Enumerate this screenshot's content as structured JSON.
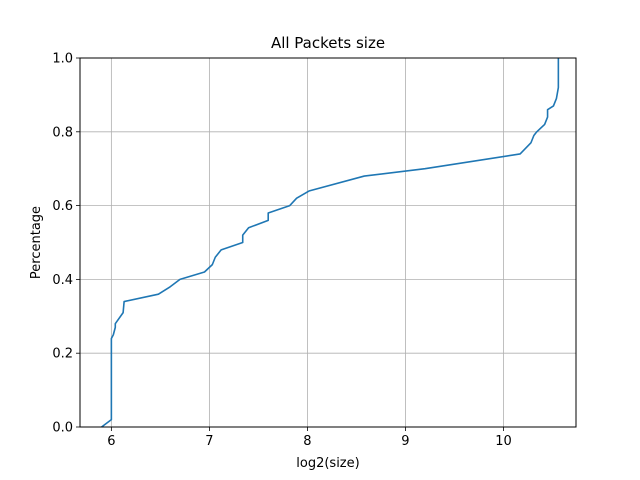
{
  "chart_data": {
    "type": "line",
    "title": "All Packets size",
    "xlabel": "log2(size)",
    "ylabel": "Percentage",
    "xlim": [
      5.68,
      10.74
    ],
    "ylim": [
      0.0,
      1.0
    ],
    "grid": true,
    "xticks": [
      6,
      7,
      8,
      9,
      10
    ],
    "xtick_labels": [
      "6",
      "7",
      "8",
      "9",
      "10"
    ],
    "yticks": [
      0.0,
      0.2,
      0.4,
      0.6,
      0.8,
      1.0
    ],
    "ytick_labels": [
      "0.0",
      "0.2",
      "0.4",
      "0.6",
      "0.8",
      "1.0"
    ],
    "series": [
      {
        "color": "#1f77b4",
        "x": [
          5.9,
          6.0,
          6.0,
          6.0,
          6.02,
          6.04,
          6.04,
          6.12,
          6.13,
          6.48,
          6.6,
          6.7,
          6.95,
          7.03,
          7.06,
          7.12,
          7.34,
          7.34,
          7.4,
          7.6,
          7.6,
          7.82,
          7.89,
          8.02,
          8.58,
          9.2,
          10.17,
          10.28,
          10.31,
          10.34,
          10.42,
          10.45,
          10.45,
          10.51,
          10.54,
          10.56,
          10.56
        ],
        "y": [
          0.0,
          0.02,
          0.08,
          0.24,
          0.25,
          0.27,
          0.28,
          0.31,
          0.34,
          0.36,
          0.38,
          0.4,
          0.42,
          0.44,
          0.46,
          0.48,
          0.5,
          0.52,
          0.54,
          0.56,
          0.58,
          0.6,
          0.62,
          0.64,
          0.68,
          0.7,
          0.74,
          0.77,
          0.79,
          0.8,
          0.82,
          0.84,
          0.86,
          0.87,
          0.89,
          0.92,
          1.0
        ]
      }
    ]
  }
}
